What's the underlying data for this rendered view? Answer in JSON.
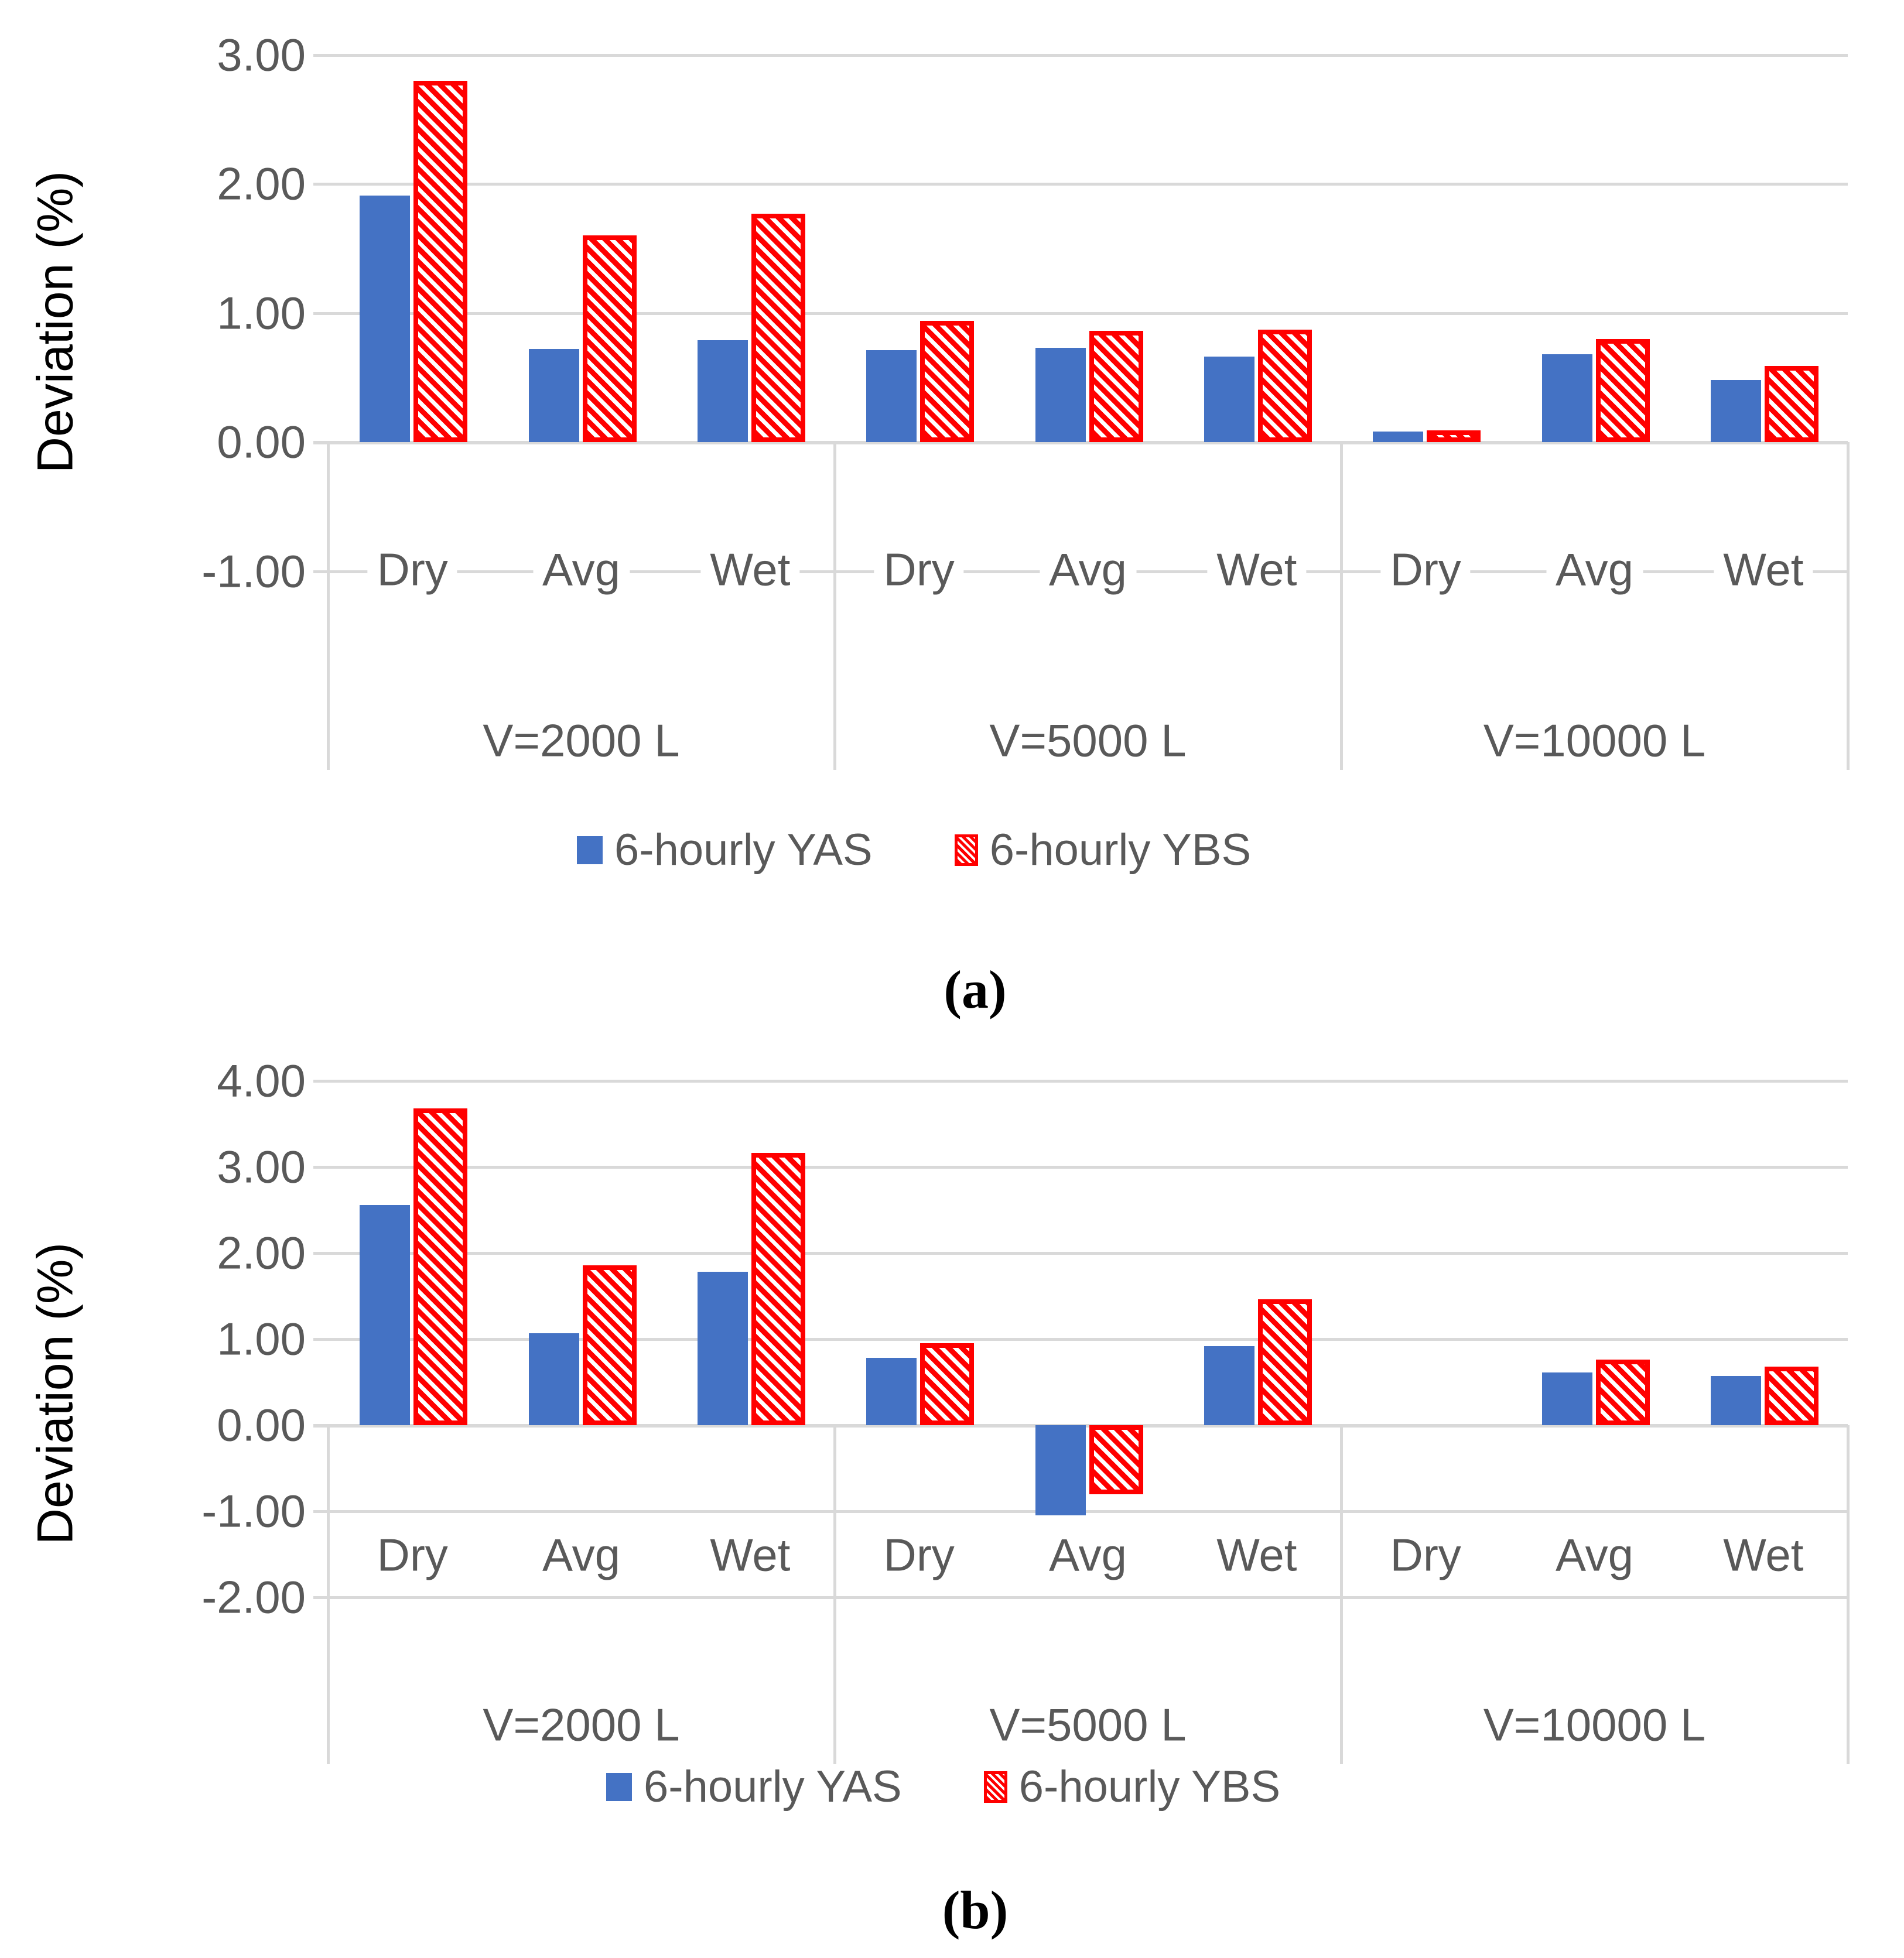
{
  "colors": {
    "yas_blue": "#4472C4",
    "ybs_red": "#FF0000",
    "gridline_gray": "#D9D9D9",
    "axis_text_gray": "#595959",
    "caption_black": "#000000"
  },
  "legend": {
    "items": [
      {
        "label": "6-hourly YAS",
        "series": "yas"
      },
      {
        "label": "6-hourly YBS",
        "series": "ybs"
      }
    ]
  },
  "captions": {
    "a": "(a)",
    "b": "(b)"
  },
  "chart_data": [
    {
      "id": "a",
      "type": "bar",
      "title": "",
      "xlabel": "",
      "ylabel": "Deviation (%)",
      "ylim": [
        -1,
        3
      ],
      "grid": true,
      "legend_position": "bottom",
      "ytick_values": [
        3,
        2,
        1,
        0,
        -1
      ],
      "ytick_labels": [
        "3.00",
        "2.00",
        "1.00",
        "0.00",
        "-1.00"
      ],
      "categories": [
        "Dry",
        "Avg",
        "Wet"
      ],
      "series": [
        {
          "name": "6-hourly YAS",
          "key": "yas"
        },
        {
          "name": "6-hourly YBS",
          "key": "ybs"
        }
      ],
      "groups": [
        {
          "label": "V=2000 L",
          "values": {
            "yas": [
              1.91,
              0.72,
              0.79
            ],
            "ybs": [
              2.8,
              1.6,
              1.77
            ]
          }
        },
        {
          "label": "V=5000 L",
          "values": {
            "yas": [
              0.71,
              0.73,
              0.66
            ],
            "ybs": [
              0.94,
              0.86,
              0.87
            ]
          }
        },
        {
          "label": "V=10000 L",
          "values": {
            "yas": [
              0.08,
              0.68,
              0.48
            ],
            "ybs": [
              0.09,
              0.8,
              0.59
            ]
          }
        }
      ]
    },
    {
      "id": "b",
      "type": "bar",
      "title": "",
      "xlabel": "",
      "ylabel": "Deviation (%)",
      "ylim": [
        -2,
        4
      ],
      "grid": true,
      "legend_position": "bottom",
      "ytick_values": [
        4,
        3,
        2,
        1,
        0,
        -1,
        -2
      ],
      "ytick_labels": [
        "4.00",
        "3.00",
        "2.00",
        "1.00",
        "0.00",
        "-1.00",
        "-2.00"
      ],
      "categories": [
        "Dry",
        "Avg",
        "Wet"
      ],
      "series": [
        {
          "name": "6-hourly YAS",
          "key": "yas"
        },
        {
          "name": "6-hourly YBS",
          "key": "ybs"
        }
      ],
      "groups": [
        {
          "label": "V=2000 L",
          "values": {
            "yas": [
              2.56,
              1.07,
              1.78
            ],
            "ybs": [
              3.68,
              1.86,
              3.16
            ]
          }
        },
        {
          "label": "V=5000 L",
          "values": {
            "yas": [
              0.78,
              -1.05,
              0.92
            ],
            "ybs": [
              0.95,
              -0.8,
              1.46
            ]
          }
        },
        {
          "label": "V=10000 L",
          "values": {
            "yas": [
              null,
              0.61,
              0.57
            ],
            "ybs": [
              null,
              0.76,
              0.68
            ]
          }
        }
      ]
    }
  ]
}
